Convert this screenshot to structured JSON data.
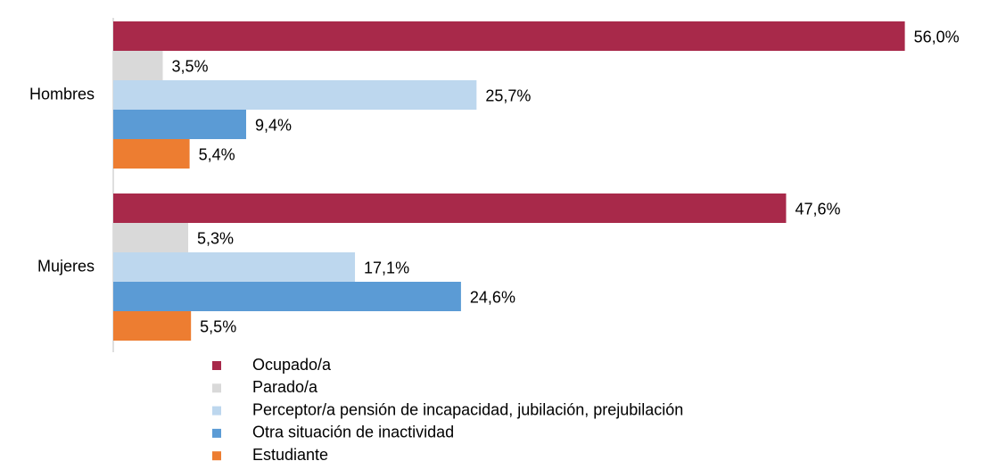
{
  "chart_data": {
    "type": "barh",
    "categories": [
      "Hombres",
      "Mujeres"
    ],
    "series": [
      {
        "name": "Ocupado/a",
        "color": "#a8294a",
        "values": [
          56.0,
          47.6
        ],
        "value_labels": [
          "56,0%",
          "47,6%"
        ]
      },
      {
        "name": "Parado/a",
        "color": "#d9d9d9",
        "values": [
          3.5,
          5.3
        ],
        "value_labels": [
          "3,5%",
          "5,3%"
        ]
      },
      {
        "name": "Perceptor/a pensión de incapacidad, jubilación, prejubilación",
        "color": "#bdd7ee",
        "values": [
          25.7,
          17.1
        ],
        "value_labels": [
          "25,7%",
          "17,1%"
        ]
      },
      {
        "name": "Otra situación de inactividad",
        "color": "#5b9bd5",
        "values": [
          9.4,
          24.6
        ],
        "value_labels": [
          "9,4%",
          "24,6%"
        ]
      },
      {
        "name": "Estudiante",
        "color": "#ed7d31",
        "values": [
          5.4,
          5.5
        ],
        "value_labels": [
          "5,4%",
          "5,5%"
        ]
      }
    ],
    "xlim": [
      0,
      60
    ],
    "legend": "bottom"
  }
}
